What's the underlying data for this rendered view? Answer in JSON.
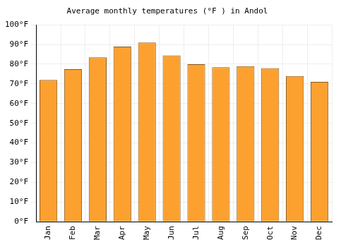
{
  "chart_data": {
    "type": "bar",
    "title": "Average monthly temperatures (°F ) in Andol",
    "categories": [
      "Jan",
      "Feb",
      "Mar",
      "Apr",
      "May",
      "Jun",
      "Jul",
      "Aug",
      "Sep",
      "Oct",
      "Nov",
      "Dec"
    ],
    "values": [
      72,
      77.5,
      83.5,
      89,
      91,
      84.5,
      80,
      78.5,
      79,
      78,
      74,
      71
    ],
    "color": "#fca130",
    "ylim": [
      0,
      100
    ],
    "yticks": [
      {
        "value": 0,
        "label": "0°F"
      },
      {
        "value": 10,
        "label": "10°F"
      },
      {
        "value": 20,
        "label": "20°F"
      },
      {
        "value": 30,
        "label": "30°F"
      },
      {
        "value": 40,
        "label": "40°F"
      },
      {
        "value": 50,
        "label": "50°F"
      },
      {
        "value": 60,
        "label": "60°F"
      },
      {
        "value": 70,
        "label": "70°F"
      },
      {
        "value": 80,
        "label": "80°F"
      },
      {
        "value": 90,
        "label": "90°F"
      },
      {
        "value": 100,
        "label": "100°F"
      }
    ],
    "grid": true
  }
}
